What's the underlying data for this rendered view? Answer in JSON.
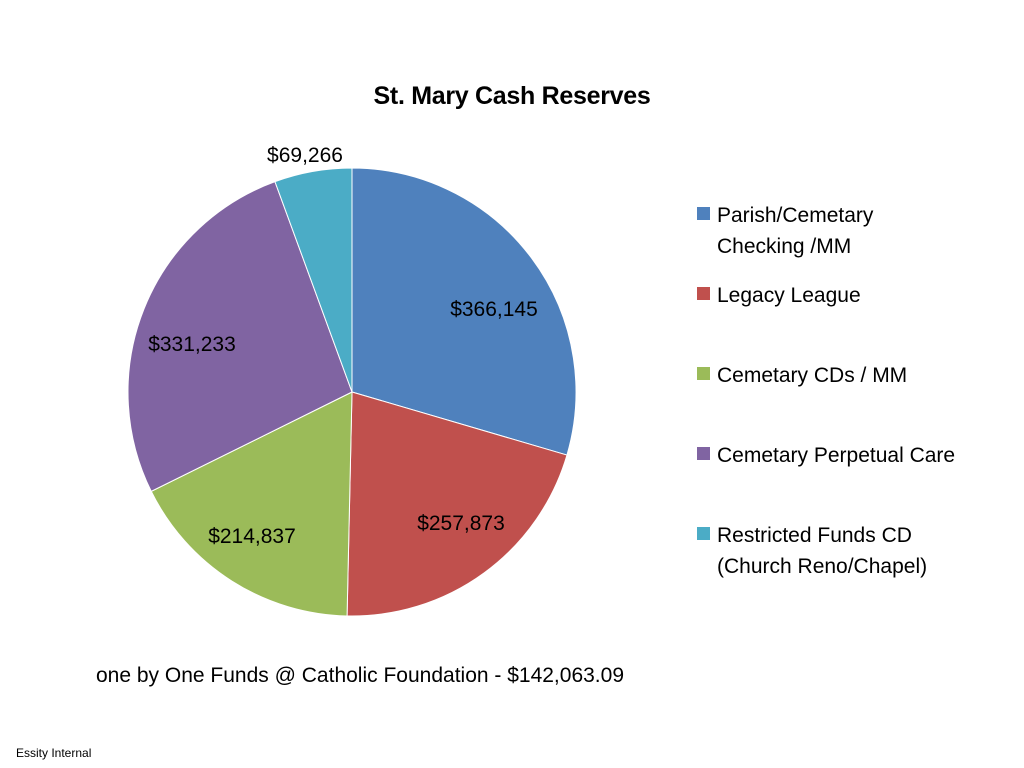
{
  "chart_data": {
    "type": "pie",
    "title": "St. Mary Cash Reserves",
    "categories": [
      "Parish/Cemetary Checking /MM",
      "Legacy League",
      "Cemetary CDs / MM",
      "Cemetary Perpetual Care",
      "Restricted Funds CD (Church Reno/Chapel)"
    ],
    "legend_lines": [
      [
        "Parish/Cemetary",
        "Checking /MM"
      ],
      [
        "Legacy League"
      ],
      [
        "Cemetary CDs / MM"
      ],
      [
        "Cemetary Perpetual Care"
      ],
      [
        "Restricted Funds CD",
        "(Church Reno/Chapel)"
      ]
    ],
    "values": [
      366145,
      257873,
      214837,
      331233,
      69266
    ],
    "data_labels": [
      "$366,145",
      "$257,873",
      "$214,837",
      "$331,233",
      "$69,266"
    ],
    "colors": [
      "#4F81BD",
      "#C0504D",
      "#9BBB59",
      "#8064A2",
      "#4BACC6"
    ],
    "legend_position": "right"
  },
  "footnote": "one by One Funds @ Catholic Foundation - $142,063.09",
  "footer": "Essity Internal"
}
